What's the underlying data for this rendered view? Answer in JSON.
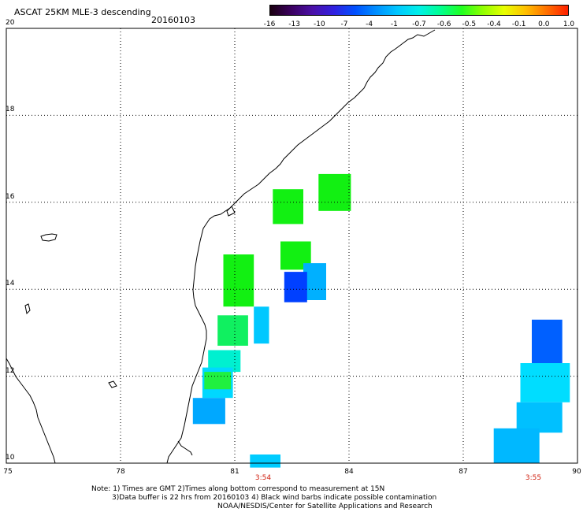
{
  "title": {
    "product": "ASCAT 25KM MLE-3 descending",
    "date": "20160103"
  },
  "colorbar": {
    "labels": [
      "-16",
      "-13",
      "-10",
      "-7",
      "-4",
      "-1",
      "-0.7",
      "-0.6",
      "-0.5",
      "-0.4",
      "-0.1",
      "0.0",
      "1.0"
    ],
    "colors": [
      "#1a0010",
      "#3b0060",
      "#4a10a8",
      "#3020e0",
      "#0050ff",
      "#0090ff",
      "#00c8ff",
      "#00f0e8",
      "#00ff90",
      "#20ff20",
      "#90ff00",
      "#e8ff00",
      "#ffc000",
      "#ff7000",
      "#ff2000"
    ]
  },
  "axes": {
    "lat_labels": [
      "20",
      "18",
      "16",
      "14",
      "12",
      "10"
    ],
    "lon_labels": [
      "75",
      "78",
      "81",
      "84",
      "87",
      "90"
    ],
    "lon_range": [
      75,
      90
    ],
    "lat_range": [
      10,
      20
    ],
    "grid": "dotted"
  },
  "swath_times": {
    "left": "3:54",
    "right": "3:55"
  },
  "note": {
    "line1": "Note: 1) Times are GMT 2)Times along bottom correspond to measurement at 15N",
    "line2": "3)Data buffer is 22 hrs from 20160103 4) Black wind barbs indicate possible contamination",
    "line3": "NOAA/NESDIS/Center for Satellite Applications and Research"
  },
  "data_cells": [
    {
      "lon": 82.0,
      "lat": 16.3,
      "w": 0.8,
      "h": 0.8,
      "color": "#12f012"
    },
    {
      "lon": 83.2,
      "lat": 16.65,
      "w": 0.85,
      "h": 0.85,
      "color": "#12f012"
    },
    {
      "lon": 82.2,
      "lat": 15.1,
      "w": 0.8,
      "h": 0.65,
      "color": "#12f012"
    },
    {
      "lon": 80.7,
      "lat": 14.8,
      "w": 0.8,
      "h": 1.2,
      "color": "#12f012"
    },
    {
      "lon": 82.8,
      "lat": 14.6,
      "w": 0.6,
      "h": 0.85,
      "color": "#00b0ff"
    },
    {
      "lon": 82.3,
      "lat": 14.4,
      "w": 0.6,
      "h": 0.7,
      "color": "#0040ff"
    },
    {
      "lon": 81.5,
      "lat": 13.6,
      "w": 0.4,
      "h": 0.85,
      "color": "#00c8ff"
    },
    {
      "lon": 80.55,
      "lat": 13.4,
      "w": 0.8,
      "h": 0.7,
      "color": "#10f060"
    },
    {
      "lon": 80.3,
      "lat": 12.6,
      "w": 0.85,
      "h": 0.5,
      "color": "#00f0d0"
    },
    {
      "lon": 80.15,
      "lat": 12.2,
      "w": 0.8,
      "h": 0.7,
      "color": "#00d8ff"
    },
    {
      "lon": 80.2,
      "lat": 12.1,
      "w": 0.7,
      "h": 0.4,
      "color": "#20f040"
    },
    {
      "lon": 79.9,
      "lat": 11.5,
      "w": 0.85,
      "h": 0.6,
      "color": "#00a8ff"
    },
    {
      "lon": 81.4,
      "lat": 10.2,
      "w": 0.8,
      "h": 0.3,
      "color": "#00ccff"
    },
    {
      "lon": 88.8,
      "lat": 13.3,
      "w": 0.8,
      "h": 1.0,
      "color": "#0060ff"
    },
    {
      "lon": 88.5,
      "lat": 12.3,
      "w": 1.3,
      "h": 0.9,
      "color": "#00ddff"
    },
    {
      "lon": 88.4,
      "lat": 11.4,
      "w": 1.2,
      "h": 0.7,
      "color": "#00c0ff"
    },
    {
      "lon": 87.8,
      "lat": 10.8,
      "w": 1.2,
      "h": 0.8,
      "color": "#00b8ff"
    }
  ]
}
